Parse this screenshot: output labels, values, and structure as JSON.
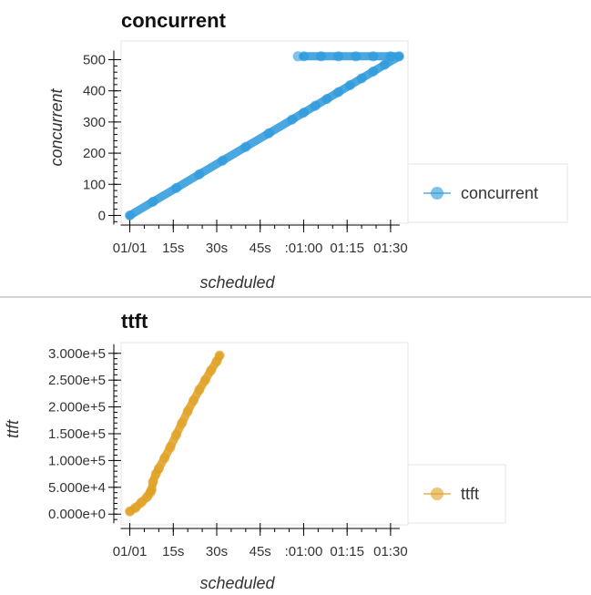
{
  "chart_data": [
    {
      "type": "scatter",
      "title": "concurrent",
      "xlabel": "scheduled",
      "ylabel": "concurrent",
      "x_unit": "seconds",
      "xlim": [
        -3,
        96
      ],
      "ylim": [
        -25,
        560
      ],
      "x_ticks": [
        {
          "value": 0,
          "label": "01/01"
        },
        {
          "value": 15,
          "label": "15s"
        },
        {
          "value": 30,
          "label": "30s"
        },
        {
          "value": 45,
          "label": "45s"
        },
        {
          "value": 60,
          "label": ":01:00"
        },
        {
          "value": 75,
          "label": "01:15"
        },
        {
          "value": 90,
          "label": "01:30"
        }
      ],
      "y_ticks": [
        {
          "value": 0,
          "label": "0"
        },
        {
          "value": 100,
          "label": "100"
        },
        {
          "value": 200,
          "label": "200"
        },
        {
          "value": 300,
          "label": "300"
        },
        {
          "value": 400,
          "label": "400"
        },
        {
          "value": 500,
          "label": "500"
        }
      ],
      "series": [
        {
          "name": "concurrent",
          "color": "#2a98da",
          "points": [
            [
              0,
              0
            ],
            [
              8,
              44
            ],
            [
              16,
              88
            ],
            [
              24,
              132
            ],
            [
              32,
              176
            ],
            [
              40,
              220
            ],
            [
              48,
              264
            ],
            [
              56,
              308
            ],
            [
              60,
              330
            ],
            [
              64,
              352
            ],
            [
              68,
              374
            ],
            [
              72,
              396
            ],
            [
              76,
              418
            ],
            [
              80,
              440
            ],
            [
              84,
              462
            ],
            [
              88,
              484
            ],
            [
              93,
              511
            ],
            [
              58,
              511
            ],
            [
              60,
              511
            ],
            [
              66,
              511
            ],
            [
              72,
              511
            ],
            [
              78,
              511
            ],
            [
              84,
              511
            ],
            [
              90,
              511
            ]
          ]
        }
      ],
      "legend": {
        "placement": "right",
        "entries": [
          "concurrent"
        ]
      }
    },
    {
      "type": "scatter",
      "title": "ttft",
      "xlabel": "scheduled",
      "ylabel": "ttft",
      "x_unit": "seconds",
      "xlim": [
        -3,
        96
      ],
      "ylim": [
        -20000,
        320000
      ],
      "x_ticks": [
        {
          "value": 0,
          "label": "01/01"
        },
        {
          "value": 15,
          "label": "15s"
        },
        {
          "value": 30,
          "label": "30s"
        },
        {
          "value": 45,
          "label": "45s"
        },
        {
          "value": 60,
          "label": ":01:00"
        },
        {
          "value": 75,
          "label": "01:15"
        },
        {
          "value": 90,
          "label": "01:30"
        }
      ],
      "y_ticks": [
        {
          "value": 0,
          "label": "0.000e+0"
        },
        {
          "value": 50000,
          "label": "5.000e+4"
        },
        {
          "value": 100000,
          "label": "1.000e+5"
        },
        {
          "value": 150000,
          "label": "1.500e+5"
        },
        {
          "value": 200000,
          "label": "2.000e+5"
        },
        {
          "value": 250000,
          "label": "2.500e+5"
        },
        {
          "value": 300000,
          "label": "3.000e+5"
        }
      ],
      "series": [
        {
          "name": "ttft",
          "color": "#e0a022",
          "points": [
            [
              0,
              5000
            ],
            [
              2,
              12000
            ],
            [
              4,
              22000
            ],
            [
              6,
              32000
            ],
            [
              7,
              40000
            ],
            [
              7.5,
              45000
            ],
            [
              8,
              60000
            ],
            [
              9,
              75000
            ],
            [
              10,
              85000
            ],
            [
              12,
              105000
            ],
            [
              14,
              125000
            ],
            [
              16,
              148000
            ],
            [
              18,
              170000
            ],
            [
              20,
              192000
            ],
            [
              22,
              212000
            ],
            [
              24,
              232000
            ],
            [
              26,
              250000
            ],
            [
              28,
              268000
            ],
            [
              30,
              285000
            ],
            [
              31,
              296000
            ]
          ]
        }
      ],
      "legend": {
        "placement": "right",
        "entries": [
          "ttft"
        ]
      }
    }
  ]
}
